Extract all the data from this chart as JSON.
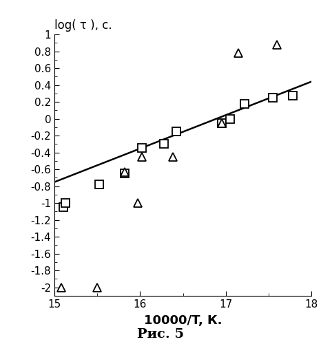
{
  "squares_x": [
    15.1,
    15.13,
    15.52,
    15.82,
    16.02,
    16.28,
    16.42,
    16.95,
    17.05,
    17.22,
    17.55,
    17.78
  ],
  "squares_y": [
    -1.05,
    -1.0,
    -0.78,
    -0.65,
    -0.35,
    -0.3,
    -0.15,
    -0.05,
    0.0,
    0.18,
    0.25,
    0.27
  ],
  "triangles_x": [
    15.08,
    15.5,
    15.82,
    15.97,
    16.02,
    16.38,
    16.95,
    17.15,
    17.6
  ],
  "triangles_y": [
    -2.0,
    -2.0,
    -0.63,
    -1.0,
    -0.45,
    -0.45,
    -0.05,
    0.78,
    0.88
  ],
  "line_x": [
    15.0,
    18.0
  ],
  "line_y": [
    -0.75,
    0.44
  ],
  "xlim": [
    15.0,
    18.0
  ],
  "ylim": [
    -2.1,
    1.0
  ],
  "xticks": [
    15,
    16,
    17,
    18
  ],
  "yticks": [
    -2.0,
    -1.8,
    -1.6,
    -1.4,
    -1.2,
    -1.0,
    -0.8,
    -0.6,
    -0.4,
    -0.2,
    0.0,
    0.2,
    0.4,
    0.6,
    0.8,
    1.0
  ],
  "xlabel": "10000/T, К.",
  "ylabel": "log( τ ), с.",
  "caption": "Рис. 5",
  "bg_color": "#ffffff",
  "line_color": "#000000",
  "marker_color": "#000000"
}
